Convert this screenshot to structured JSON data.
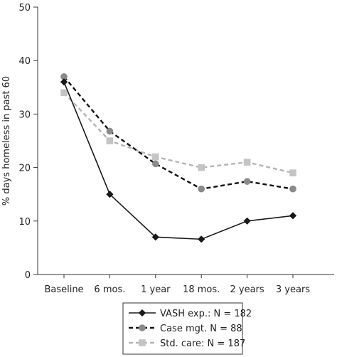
{
  "chart_data": {
    "type": "line",
    "ylabel": "% days homeless in past 60",
    "xlabel": "",
    "ylim": [
      0,
      50
    ],
    "yticks": [
      "0",
      "10",
      "20",
      "30",
      "40",
      "50"
    ],
    "categories": [
      "Baseline",
      "6 mos.",
      "1 year",
      "18 mos.",
      "2 years",
      "3 years"
    ],
    "grid": false,
    "legend_position": "bottom",
    "series": [
      {
        "name": "VASH exp.: N = 182",
        "values": [
          36,
          15,
          7,
          6.6,
          10,
          11
        ],
        "color": "#1a1a1a",
        "line_style": "solid",
        "marker": "diamond"
      },
      {
        "name": "Case mgt. N = 88",
        "values": [
          37,
          26.8,
          20.7,
          16,
          17.4,
          16
        ],
        "color": "#111111",
        "marker_color": "#8a8a8a",
        "line_style": "dashed",
        "marker": "circle"
      },
      {
        "name": "Std. care: N = 187",
        "values": [
          34,
          25,
          22,
          20,
          21,
          19
        ],
        "color": "#b5b5b5",
        "marker_color": "#c4c4c4",
        "line_style": "dashed",
        "marker": "square"
      }
    ]
  }
}
